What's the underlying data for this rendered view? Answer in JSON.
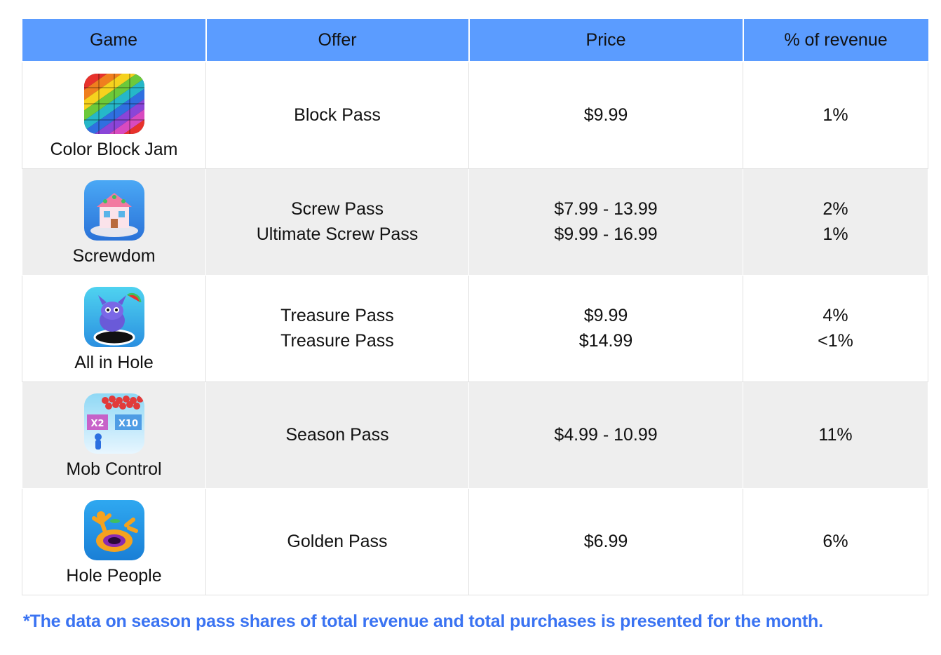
{
  "table": {
    "headers": {
      "game": "Game",
      "offer": "Offer",
      "price": "Price",
      "revenue": "% of revenue"
    },
    "rows": [
      {
        "game": "Color Block Jam",
        "icon": "color-block-jam-icon",
        "offers": [
          "Block Pass"
        ],
        "prices": [
          "$9.99"
        ],
        "revenue": [
          "1%"
        ]
      },
      {
        "game": "Screwdom",
        "icon": "screwdom-icon",
        "offers": [
          "Screw Pass",
          "Ultimate Screw Pass"
        ],
        "prices": [
          "$7.99 - 13.99",
          "$9.99 - 16.99"
        ],
        "revenue": [
          "2%",
          "1%"
        ]
      },
      {
        "game": "All in Hole",
        "icon": "all-in-hole-icon",
        "offers": [
          "Treasure Pass",
          "Treasure Pass"
        ],
        "prices": [
          "$9.99",
          "$14.99"
        ],
        "revenue": [
          "4%",
          "<1%"
        ]
      },
      {
        "game": "Mob Control",
        "icon": "mob-control-icon",
        "offers": [
          "Season Pass"
        ],
        "prices": [
          "$4.99 - 10.99"
        ],
        "revenue": [
          "11%"
        ]
      },
      {
        "game": "Hole People",
        "icon": "hole-people-icon",
        "offers": [
          "Golden Pass"
        ],
        "prices": [
          "$6.99"
        ],
        "revenue": [
          "6%"
        ]
      }
    ]
  },
  "footnote": "*The data on season pass shares of total revenue and total purchases is presented for the month.",
  "colors": {
    "header_bg": "#5b9cff",
    "alt_row_bg": "#eeeeee",
    "footnote": "#3a73f2"
  }
}
